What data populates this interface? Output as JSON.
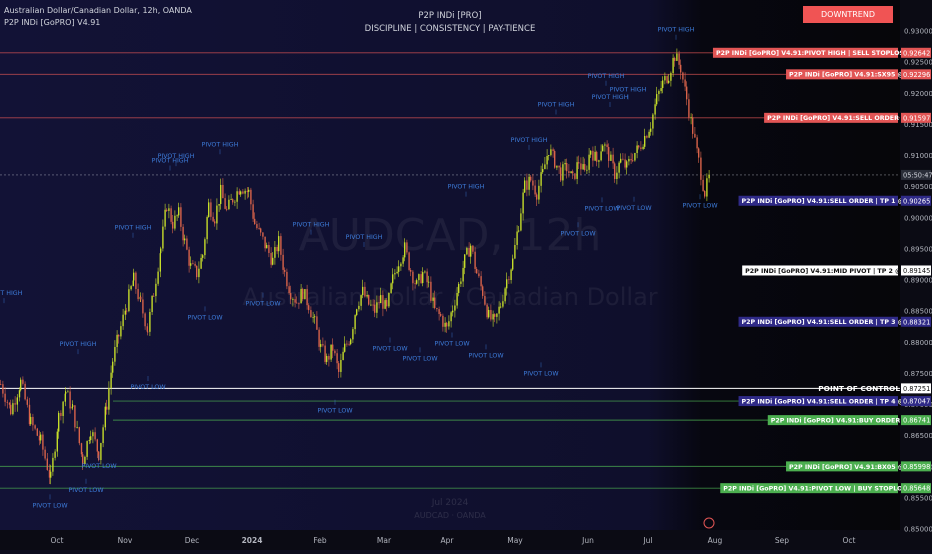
{
  "header": {
    "symbol_line": "Australian Dollar/Canadian Dollar, 12h, OANDA",
    "indicator_line": "P2P INDi [GoPRO] V4.91",
    "center_title": "P2P INDi [PRO]",
    "center_subtitle": "DISCIPLINE  |  CONSISTENCY  |  PAY-TIENCE",
    "trend_badge": "DOWNTREND"
  },
  "watermark": {
    "ticker": "AUDCAD, 12h",
    "name": "Australian Dollar / Canadian Dollar",
    "footer1": "Jul 2024",
    "footer2": "AUDCAD · OANDA"
  },
  "colors": {
    "background": "#0c0c1e",
    "bull": "#c6dd2a",
    "bear": "#d9634a",
    "sell_label": "#e25555",
    "tp_label": "#2f2a87",
    "buy_label": "#4caf50",
    "poc_label": "#ffffff",
    "pivot_text": "#3d7bd9"
  },
  "chart_data": {
    "type": "candlestick",
    "symbol": "AUDCAD",
    "timeframe": "12h",
    "y_axis": {
      "ylim": [
        0.8491,
        0.9342
      ],
      "ticks": [
        "0.93000",
        "0.92500",
        "0.92000",
        "0.91500",
        "0.91000",
        "0.90500",
        "0.90000",
        "0.89500",
        "0.89000",
        "0.88500",
        "0.88000",
        "0.87500",
        "0.87000",
        "0.86500",
        "0.86000",
        "0.85500",
        "0.85000"
      ],
      "countdown": "05:50:47"
    },
    "x_axis": {
      "labels": [
        "Oct",
        "Nov",
        "Dec",
        "2024",
        "Feb",
        "Mar",
        "Apr",
        "May",
        "Jun",
        "Jul",
        "Aug",
        "Sep",
        "Oct"
      ]
    },
    "price_path": [
      [
        0,
        0.8732
      ],
      [
        10,
        0.869
      ],
      [
        20,
        0.8735
      ],
      [
        30,
        0.867
      ],
      [
        40,
        0.864
      ],
      [
        50,
        0.858
      ],
      [
        58,
        0.868
      ],
      [
        65,
        0.872
      ],
      [
        72,
        0.869
      ],
      [
        82,
        0.861
      ],
      [
        90,
        0.866
      ],
      [
        98,
        0.862
      ],
      [
        106,
        0.87
      ],
      [
        112,
        0.877
      ],
      [
        118,
        0.881
      ],
      [
        126,
        0.886
      ],
      [
        133,
        0.89
      ],
      [
        140,
        0.886
      ],
      [
        147,
        0.882
      ],
      [
        153,
        0.888
      ],
      [
        160,
        0.895
      ],
      [
        166,
        0.902
      ],
      [
        172,
        0.899
      ],
      [
        178,
        0.9005
      ],
      [
        184,
        0.896
      ],
      [
        190,
        0.892
      ],
      [
        196,
        0.891
      ],
      [
        202,
        0.894
      ],
      [
        208,
        0.902
      ],
      [
        214,
        0.9
      ],
      [
        220,
        0.904
      ],
      [
        226,
        0.901
      ],
      [
        232,
        0.903
      ],
      [
        240,
        0.905
      ],
      [
        248,
        0.904
      ],
      [
        254,
        0.899
      ],
      [
        260,
        0.897
      ],
      [
        266,
        0.895
      ],
      [
        272,
        0.893
      ],
      [
        278,
        0.896
      ],
      [
        284,
        0.891
      ],
      [
        290,
        0.888
      ],
      [
        296,
        0.8865
      ],
      [
        302,
        0.888
      ],
      [
        308,
        0.886
      ],
      [
        314,
        0.883
      ],
      [
        320,
        0.879
      ],
      [
        326,
        0.877
      ],
      [
        332,
        0.879
      ],
      [
        338,
        0.875
      ],
      [
        344,
        0.879
      ],
      [
        350,
        0.881
      ],
      [
        356,
        0.886
      ],
      [
        362,
        0.888
      ],
      [
        368,
        0.886
      ],
      [
        374,
        0.885
      ],
      [
        380,
        0.887
      ],
      [
        386,
        0.885
      ],
      [
        392,
        0.89
      ],
      [
        398,
        0.893
      ],
      [
        404,
        0.895
      ],
      [
        410,
        0.8915
      ],
      [
        416,
        0.889
      ],
      [
        422,
        0.891
      ],
      [
        428,
        0.889
      ],
      [
        434,
        0.885
      ],
      [
        440,
        0.884
      ],
      [
        446,
        0.882
      ],
      [
        452,
        0.8855
      ],
      [
        458,
        0.889
      ],
      [
        464,
        0.893
      ],
      [
        470,
        0.8955
      ],
      [
        476,
        0.891
      ],
      [
        482,
        0.888
      ],
      [
        488,
        0.884
      ],
      [
        494,
        0.883
      ],
      [
        500,
        0.886
      ],
      [
        506,
        0.89
      ],
      [
        512,
        0.893
      ],
      [
        518,
        0.899
      ],
      [
        524,
        0.905
      ],
      [
        530,
        0.906
      ],
      [
        536,
        0.904
      ],
      [
        542,
        0.907
      ],
      [
        548,
        0.911
      ],
      [
        554,
        0.909
      ],
      [
        560,
        0.907
      ],
      [
        566,
        0.908
      ],
      [
        572,
        0.906
      ],
      [
        578,
        0.909
      ],
      [
        584,
        0.907
      ],
      [
        590,
        0.911
      ],
      [
        596,
        0.909
      ],
      [
        602,
        0.912
      ],
      [
        608,
        0.91
      ],
      [
        614,
        0.907
      ],
      [
        620,
        0.909
      ],
      [
        626,
        0.908
      ],
      [
        632,
        0.91
      ],
      [
        638,
        0.911
      ],
      [
        644,
        0.913
      ],
      [
        650,
        0.915
      ],
      [
        656,
        0.919
      ],
      [
        662,
        0.9215
      ],
      [
        668,
        0.923
      ],
      [
        674,
        0.926
      ],
      [
        680,
        0.924
      ],
      [
        686,
        0.919
      ],
      [
        692,
        0.914
      ],
      [
        698,
        0.909
      ],
      [
        704,
        0.904
      ],
      [
        709,
        0.9065
      ]
    ],
    "levels": [
      {
        "label": "P2P INDi [GoPRO] V4.91:PIVOT HIGH | SELL STOPLOSS",
        "price": 0.92642,
        "price_text": "0.92642",
        "kind": "sell",
        "line_color": "#e25555"
      },
      {
        "label": "P2P INDi [GoPRO] V4.91:SX95 @",
        "price": 0.92296,
        "price_text": "0.92296",
        "kind": "sell",
        "line_color": "#e25555"
      },
      {
        "label": "P2P INDi [GoPRO] V4.91:SELL ORDER @",
        "price": 0.91597,
        "price_text": "0.91597",
        "kind": "sell",
        "line_color": "#e25555"
      },
      {
        "label": "P2P INDi [GoPRO] V4.91:SELL ORDER | TP 1 @",
        "price": 0.90265,
        "price_text": "0.90265",
        "kind": "tp",
        "line_color": ""
      },
      {
        "label": "P2P INDi [GoPRO] V4.91:MID PIVOT | TP 2 @",
        "price": 0.89145,
        "price_text": "0.89145",
        "kind": "mid",
        "line_color": ""
      },
      {
        "label": "P2P INDi [GoPRO] V4.91:SELL ORDER | TP 3 @",
        "price": 0.88321,
        "price_text": "0.88321",
        "kind": "tp",
        "line_color": ""
      },
      {
        "label": "POINT OF CONTROL (1D)",
        "price": 0.87251,
        "price_text": "0.87251",
        "kind": "poc",
        "line_color": "#ffffff"
      },
      {
        "label": "P2P INDi [GoPRO] V4.91:SELL ORDER | TP 4 @",
        "price": 0.87047,
        "price_text": "0.87047",
        "kind": "tp",
        "line_color": "#4caf50"
      },
      {
        "label": "P2P INDi [GoPRO] V4.91:BUY ORDER @",
        "price": 0.86741,
        "price_text": "0.86741",
        "kind": "buy",
        "line_color": "#4caf50"
      },
      {
        "label": "P2P INDi [GoPRO] V4.91:BX05 @",
        "price": 0.85998,
        "price_text": "0.85998",
        "kind": "buy",
        "line_color": "#4caf50"
      },
      {
        "label": "P2P INDi [GoPRO] V4.91:PIVOT LOW | BUY STOPLOSS",
        "price": 0.85648,
        "price_text": "0.85648",
        "kind": "buy",
        "line_color": "#4caf50"
      }
    ],
    "current_price_line": 0.9068,
    "annotations": [
      {
        "text": "PIVOT HIGH",
        "price": 0.8875
      },
      {
        "text": "PIVOT HIGH",
        "price": 0.8793
      },
      {
        "text": "PIVOT HIGH",
        "price": 0.898
      },
      {
        "text": "PIVOT HIGH",
        "price": 0.9088
      },
      {
        "text": "PIVOT HIGH",
        "price": 0.9095
      },
      {
        "text": "PIVOT HIGH",
        "price": 0.9114
      },
      {
        "text": "PIVOT HIGH",
        "price": 0.8985
      },
      {
        "text": "PIVOT HIGH",
        "price": 0.8965
      },
      {
        "text": "PIVOT HIGH",
        "price": 0.9046
      },
      {
        "text": "PIVOT HIGH",
        "price": 0.9121
      },
      {
        "text": "PIVOT HIGH",
        "price": 0.9178
      },
      {
        "text": "PIVOT HIGH",
        "price": 0.9224
      },
      {
        "text": "PIVOT HIGH",
        "price": 0.919
      },
      {
        "text": "PIVOT HIGH",
        "price": 0.9202
      },
      {
        "text": "PIVOT HIGH",
        "price": 0.9298
      },
      {
        "text": "PIVOT LOW",
        "price": 0.8534
      },
      {
        "text": "PIVOT LOW",
        "price": 0.8559
      },
      {
        "text": "PIVOT LOW",
        "price": 0.8597
      },
      {
        "text": "PIVOT LOW",
        "price": 0.8724
      },
      {
        "text": "PIVOT LOW",
        "price": 0.8836
      },
      {
        "text": "PIVOT LOW",
        "price": 0.8858
      },
      {
        "text": "PIVOT LOW",
        "price": 0.8686
      },
      {
        "text": "PIVOT LOW",
        "price": 0.8786
      },
      {
        "text": "PIVOT LOW",
        "price": 0.877
      },
      {
        "text": "PIVOT LOW",
        "price": 0.8794
      },
      {
        "text": "PIVOT LOW",
        "price": 0.8775
      },
      {
        "text": "PIVOT LOW",
        "price": 0.8746
      },
      {
        "text": "PIVOT LOW",
        "price": 0.8971
      },
      {
        "text": "PIVOT LOW",
        "price": 0.9011
      },
      {
        "text": "PIVOT LOW",
        "price": 0.9012
      },
      {
        "text": "PIVOT LOW",
        "price": 0.9016
      }
    ]
  }
}
